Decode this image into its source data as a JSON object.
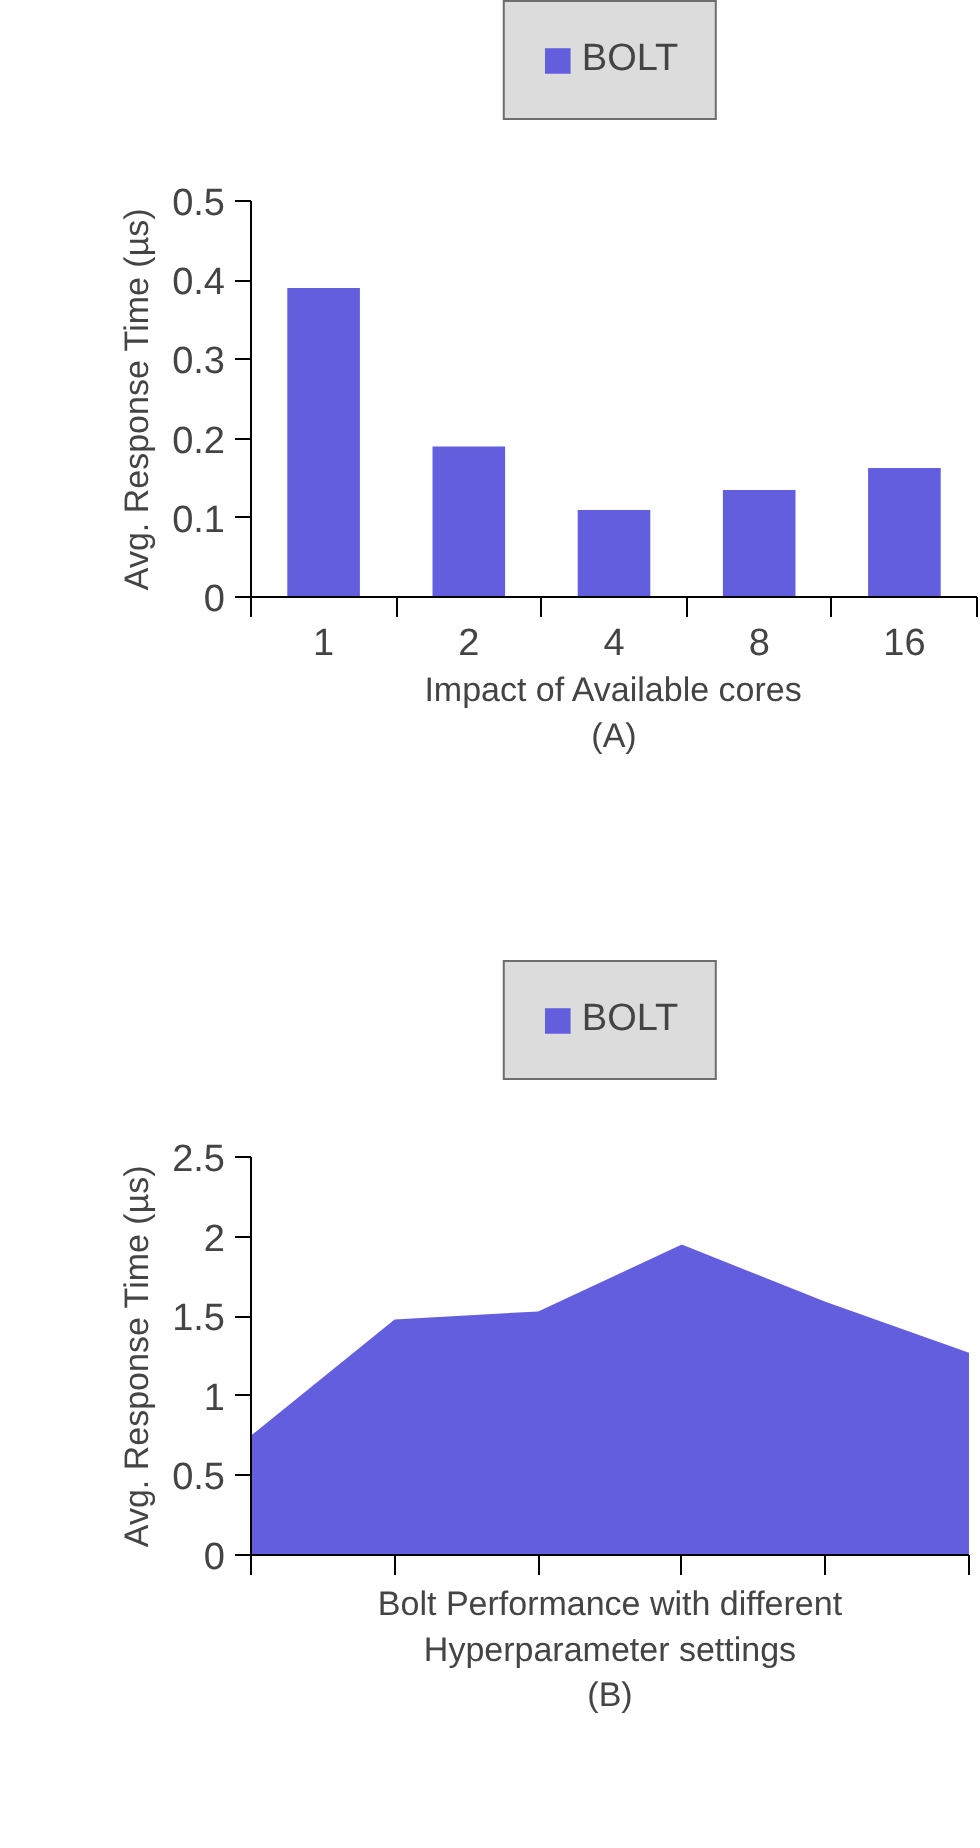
{
  "chart_data": [
    {
      "type": "bar",
      "xlabel": "Impact of Available cores\n(A)",
      "ylabel": "Avg. Response Time (µs)",
      "categories": [
        "1",
        "2",
        "4",
        "8",
        "16"
      ],
      "series": [
        {
          "name": "BOLT",
          "color": "#635ede",
          "values": [
            0.39,
            0.19,
            0.11,
            0.135,
            0.163
          ]
        }
      ],
      "ylim": [
        0,
        0.5
      ],
      "yticks": [
        0,
        0.1,
        0.2,
        0.3,
        0.4,
        0.5
      ],
      "grid": false,
      "legend": "top"
    },
    {
      "type": "area",
      "xlabel": "Bolt Performance with different\nHyperparameter settings\n(B)",
      "ylabel": "Avg. Response Time (µs)",
      "categories": [
        null,
        null,
        null,
        null,
        null,
        null
      ],
      "series": [
        {
          "name": "BOLT",
          "color": "#635ede",
          "values": [
            0.75,
            1.48,
            1.53,
            1.95,
            1.59,
            1.27
          ]
        }
      ],
      "ylim": [
        0,
        2.5
      ],
      "yticks": [
        0,
        0.5,
        1,
        1.5,
        2,
        2.5
      ],
      "grid": false,
      "legend": "top"
    }
  ]
}
